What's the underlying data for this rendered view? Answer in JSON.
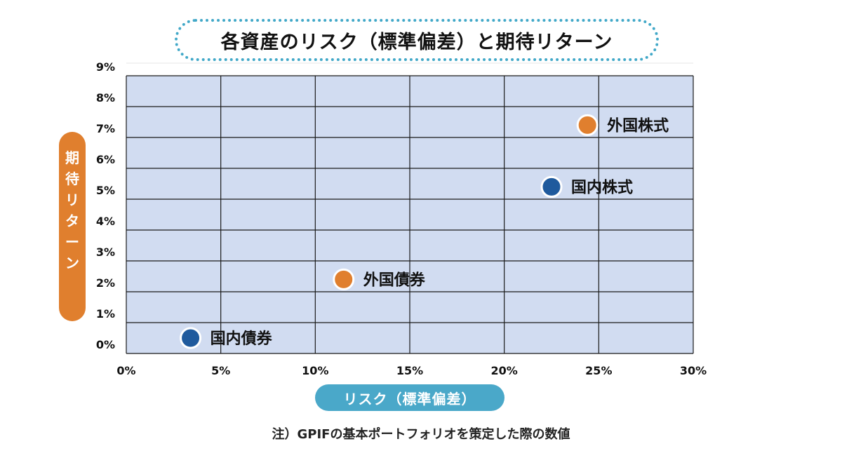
{
  "title": "各資産のリスク（標準偏差）と期待リターン",
  "note": "注）GPIFの基本ポートフォリオを策定した際の数値",
  "colors": {
    "plot_bg": "#d1dcf1",
    "grid": "#1a1a1a",
    "domestic": "#1f5a9d",
    "foreign": "#e07f2e",
    "title_border": "#41a8c8",
    "x_pill": "#4aa8c9",
    "y_pill": "#e07f2e"
  },
  "chart_data": {
    "type": "scatter",
    "title": "各資産のリスク（標準偏差）と期待リターン",
    "xlabel": "リスク（標準偏差）",
    "ylabel": "期待リターン",
    "xlim": [
      0,
      30
    ],
    "ylim": [
      0,
      9
    ],
    "x_ticks": [
      "0%",
      "5%",
      "10%",
      "15%",
      "20%",
      "25%",
      "30%"
    ],
    "x_tick_values": [
      0,
      5,
      10,
      15,
      20,
      25,
      30
    ],
    "y_ticks": [
      "0%",
      "1%",
      "2%",
      "3%",
      "4%",
      "5%",
      "6%",
      "7%",
      "8%",
      "9%"
    ],
    "y_tick_values": [
      0,
      1,
      2,
      3,
      4,
      5,
      6,
      7,
      8,
      9
    ],
    "grid": true,
    "points": [
      {
        "label": "国内債券",
        "x": 3.4,
        "y": 0.5,
        "group": "domestic"
      },
      {
        "label": "外国債券",
        "x": 11.5,
        "y": 2.4,
        "group": "foreign"
      },
      {
        "label": "国内株式",
        "x": 22.5,
        "y": 5.4,
        "group": "domestic"
      },
      {
        "label": "外国株式",
        "x": 24.4,
        "y": 7.4,
        "group": "foreign"
      }
    ]
  }
}
